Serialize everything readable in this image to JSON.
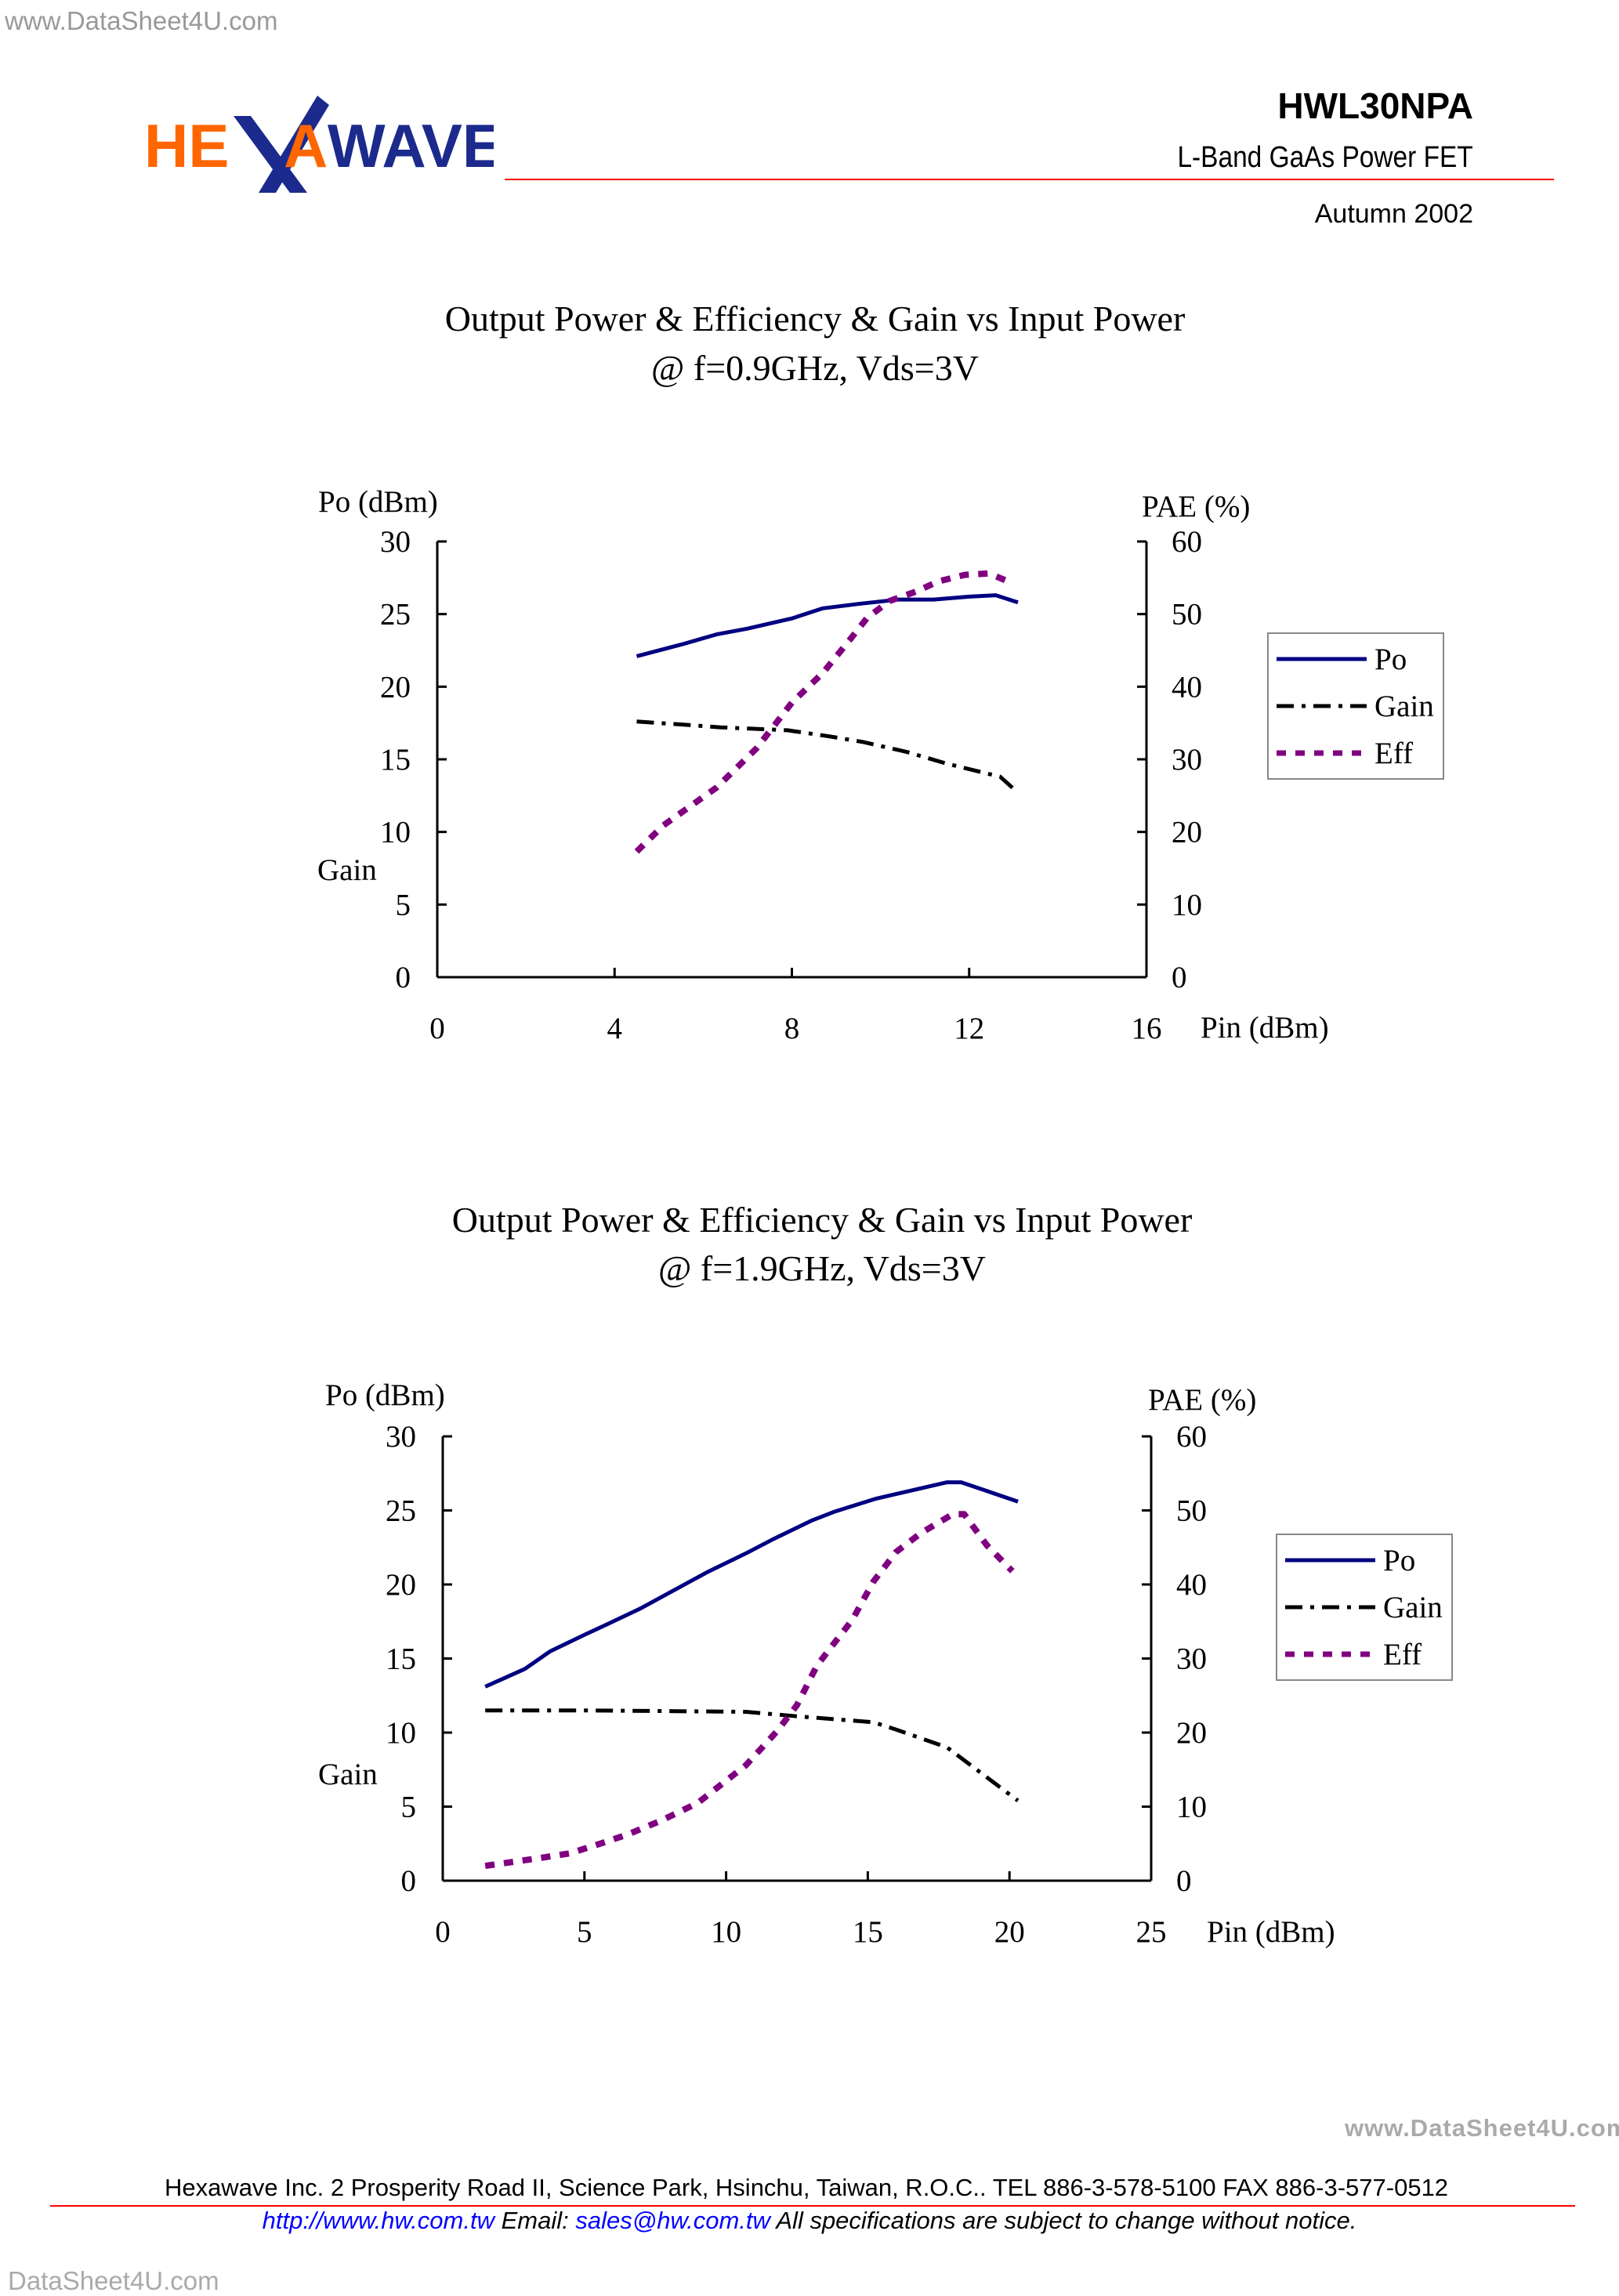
{
  "watermark_top": "www.DataSheet4U.com",
  "watermark_right": "www.DataSheet4U.com",
  "watermark_bottom": "DataSheet4U.com",
  "header": {
    "logo_text": "HEXAWAVE",
    "part_number": "HWL30NPA",
    "subtitle": "L-Band  GaAs Power  FET",
    "date": "Autumn 2002"
  },
  "colors": {
    "logo_orange": "#FF6600",
    "logo_blue": "#1B2A8C",
    "rule_red": "#FF0000",
    "po": "#000080",
    "gain": "#000000",
    "eff": "#800080"
  },
  "chart_data": [
    {
      "type": "line",
      "title": "Output Power & Efficiency & Gain vs Input Power",
      "subtitle": "@ f=0.9GHz, Vds=3V",
      "xlabel": "Pin (dBm)",
      "ylabel": "Po (dBm)",
      "ylabel_secondary": "Gain",
      "y2label": "PAE (%)",
      "xlim": [
        0,
        16
      ],
      "xticks": [
        "0",
        "4",
        "8",
        "12",
        "16"
      ],
      "ylim": [
        0,
        30
      ],
      "yticks": [
        "0",
        "5",
        "10",
        "15",
        "20",
        "25",
        "30"
      ],
      "y2lim": [
        0,
        60
      ],
      "y2ticks": [
        "0",
        "10",
        "20",
        "30",
        "40",
        "50",
        "60"
      ],
      "grid": false,
      "legend": "right",
      "series": [
        {
          "name": "Po",
          "axis": "left",
          "color": "#000080",
          "style": "solid",
          "x": [
            4.5,
            5.5,
            6.3,
            7.0,
            8.0,
            8.7,
            9.5,
            10.4,
            11.2,
            12.0,
            12.6,
            13.1
          ],
          "y": [
            22.1,
            22.9,
            23.6,
            24.0,
            24.7,
            25.4,
            25.7,
            26.0,
            26.0,
            26.2,
            26.3,
            25.8
          ]
        },
        {
          "name": "Gain",
          "axis": "left",
          "color": "#000000",
          "style": "dashdot",
          "x": [
            4.5,
            5.5,
            6.4,
            7.9,
            8.8,
            9.6,
            10.6,
            11.5,
            12.7,
            13.1
          ],
          "y": [
            17.6,
            17.4,
            17.2,
            17.0,
            16.6,
            16.2,
            15.5,
            14.7,
            13.8,
            12.7
          ]
        },
        {
          "name": "Eff",
          "axis": "right",
          "color": "#800080",
          "style": "dotted",
          "x": [
            4.5,
            5.1,
            6.3,
            7.2,
            8.0,
            8.7,
            9.3,
            9.7,
            10.2,
            10.8,
            11.3,
            11.9,
            12.45,
            12.96
          ],
          "y": [
            17.3,
            20.9,
            26.1,
            31.5,
            37.8,
            41.9,
            46.4,
            49.5,
            51.8,
            53.1,
            54.5,
            55.4,
            55.6,
            54.3
          ]
        }
      ]
    },
    {
      "type": "line",
      "title": "Output Power & Efficiency & Gain vs Input Power",
      "subtitle": "@ f=1.9GHz, Vds=3V",
      "xlabel": "Pin (dBm)",
      "ylabel": "Po (dBm)",
      "ylabel_secondary": "Gain",
      "y2label": "PAE (%)",
      "xlim": [
        0,
        25
      ],
      "xticks": [
        "0",
        "5",
        "10",
        "15",
        "20",
        "25"
      ],
      "ylim": [
        0,
        30
      ],
      "yticks": [
        "0",
        "5",
        "10",
        "15",
        "20",
        "25",
        "30"
      ],
      "y2lim": [
        0,
        60
      ],
      "y2ticks": [
        "0",
        "10",
        "20",
        "30",
        "40",
        "50",
        "60"
      ],
      "grid": false,
      "legend": "right",
      "series": [
        {
          "name": "Po",
          "axis": "left",
          "color": "#000080",
          "style": "solid",
          "x": [
            1.5,
            2.9,
            3.8,
            5.0,
            5.9,
            7.0,
            9.3,
            10.7,
            11.6,
            13.0,
            13.8,
            15.3,
            17.8,
            18.3,
            20.3
          ],
          "y": [
            13.1,
            14.3,
            15.5,
            16.6,
            17.4,
            18.4,
            20.8,
            22.1,
            23.0,
            24.3,
            24.9,
            25.8,
            26.9,
            26.9,
            25.6
          ]
        },
        {
          "name": "Gain",
          "axis": "left",
          "color": "#000000",
          "style": "dashdot",
          "x": [
            1.5,
            5.0,
            10.7,
            12.5,
            15.2,
            16.0,
            17.8,
            18.7,
            20.3
          ],
          "y": [
            11.5,
            11.5,
            11.4,
            11.1,
            10.7,
            10.2,
            9.0,
            7.7,
            5.4
          ]
        },
        {
          "name": "Eff",
          "axis": "right",
          "color": "#800080",
          "style": "dotted",
          "x": [
            1.5,
            3.5,
            4.5,
            5.4,
            6.5,
            7.7,
            9.0,
            10.7,
            11.8,
            12.5,
            13.2,
            13.9,
            14.45,
            15.2,
            16.0,
            16.9,
            18.0,
            18.4,
            19.2,
            20.1
          ],
          "y": [
            2.0,
            3.1,
            3.7,
            4.8,
            6.2,
            8.1,
            10.5,
            15.6,
            20.2,
            23.7,
            29.0,
            32.5,
            35.2,
            40.4,
            44.4,
            47.0,
            49.5,
            49.5,
            45.3,
            41.8
          ]
        }
      ]
    }
  ],
  "footer": {
    "address": "Hexawave Inc.  2 Prosperity Road II, Science Park, Hsinchu, Taiwan, R.O.C..  TEL 886-3-578-5100 FAX 886-3-577-0512",
    "website": "http://www.hw.com.tw",
    "email_label": "Email:",
    "email": "sales@hw.com.tw",
    "notice": "All specifications are subject to change without notice."
  }
}
